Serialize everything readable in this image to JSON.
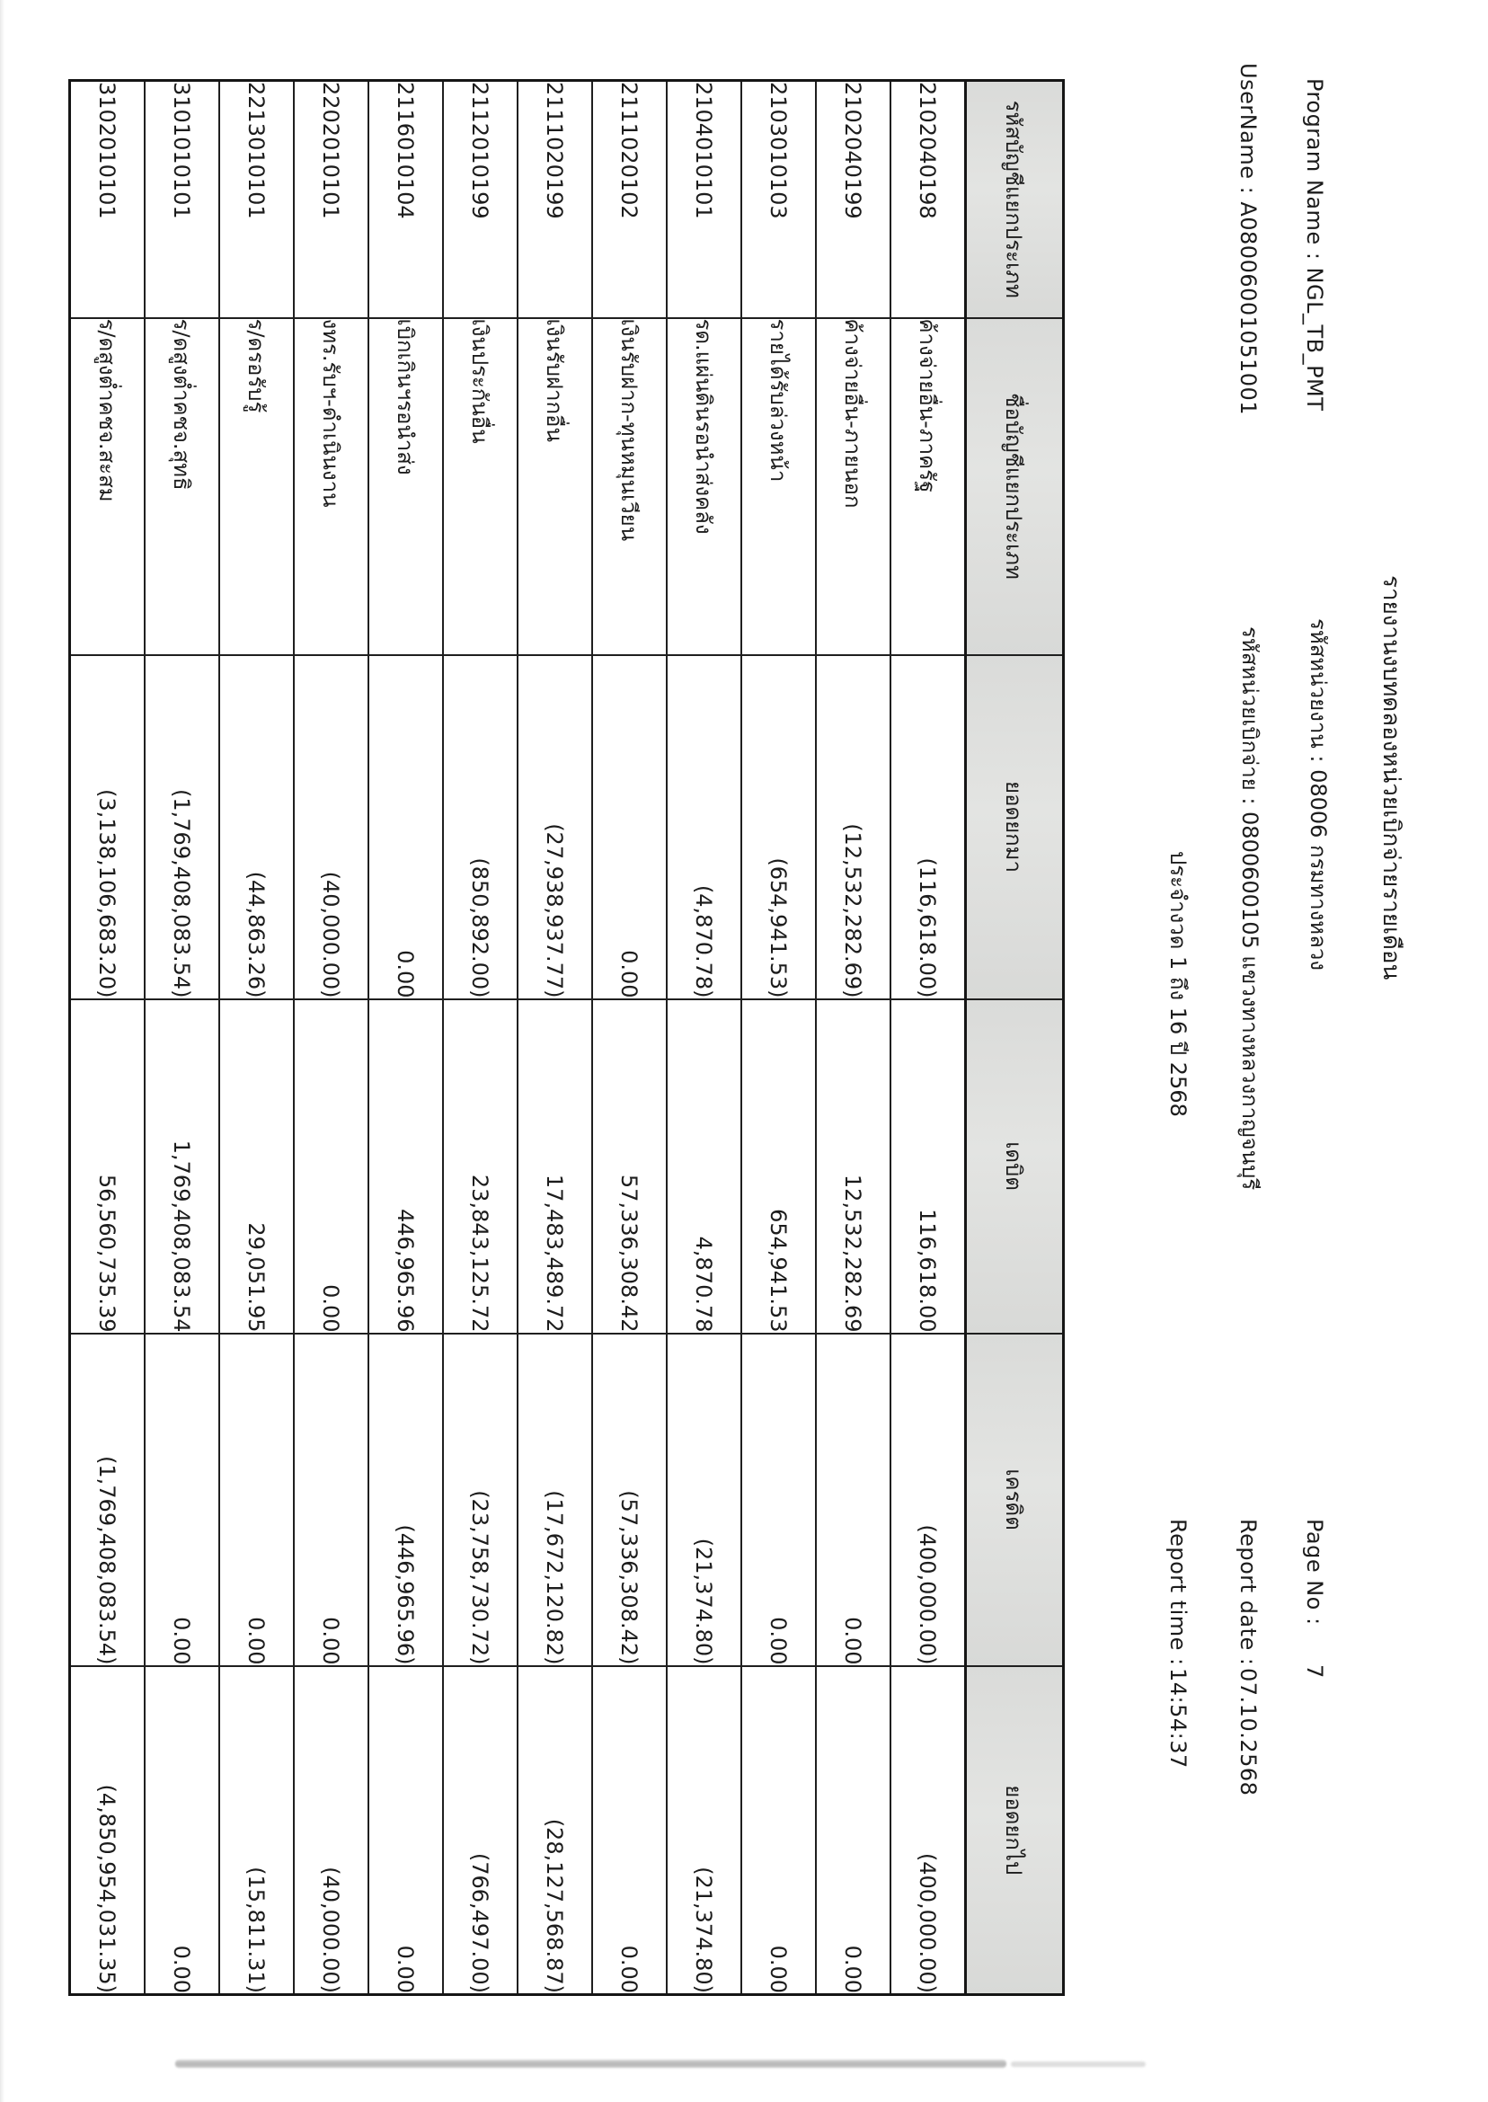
{
  "header": {
    "title": "รายงานงบทดลองหน่วยเบิกจ่ายรายเดือน",
    "program_name_line": "Program Name : NGL_TB_PMT",
    "username_line": "UserName : A08006001051001",
    "agency_line": "รหัสหน่วยงาน : 08006 กรมทางหลวง",
    "unit_line": "รหัสหน่วยเบิกจ่าย : 0800600105 แขวงทางหลวงกาญจนบุรี",
    "period_line": "ประจำงวด 1 ถึง 16 ปี 2568",
    "page_no_label": "Page No :",
    "page_no": "7",
    "report_date_label": "Report date :",
    "report_date": "07.10.2568",
    "report_time_label": "Report time :",
    "report_time": "14:54:37"
  },
  "table": {
    "columns": [
      "รหัสบัญชีแยกประเภท",
      "ชื่อบัญชีแยกประเภท",
      "ยอดยกมา",
      "เดบิต",
      "เครดิต",
      "ยอดยกไป"
    ],
    "rows": [
      {
        "code": "2102040198",
        "name": "ค้างจ่ายอื่น-ภาครัฐ",
        "opening": "(116,618.00)",
        "debit": "116,618.00",
        "credit": "(400,000.00)",
        "closing": "(400,000.00)"
      },
      {
        "code": "2102040199",
        "name": "ค้างจ่ายอื่น-ภายนอก",
        "opening": "(12,532,282.69)",
        "debit": "12,532,282.69",
        "credit": "0.00",
        "closing": "0.00"
      },
      {
        "code": "2103010103",
        "name": "รายได้รับล่วงหน้า",
        "opening": "(654,941.53)",
        "debit": "654,941.53",
        "credit": "0.00",
        "closing": "0.00"
      },
      {
        "code": "2104010101",
        "name": "รด.แผ่นดินรอนำส่งคลัง",
        "opening": "(4,870.78)",
        "debit": "4,870.78",
        "credit": "(21,374.80)",
        "closing": "(21,374.80)"
      },
      {
        "code": "2111020102",
        "name": "เงินรับฝาก-ทุนหมุนเวียน",
        "opening": "0.00",
        "debit": "57,336,308.42",
        "credit": "(57,336,308.42)",
        "closing": "0.00"
      },
      {
        "code": "2111020199",
        "name": "เงินรับฝากอื่น",
        "opening": "(27,938,937.77)",
        "debit": "17,483,489.72",
        "credit": "(17,672,120.82)",
        "closing": "(28,127,568.87)"
      },
      {
        "code": "2112010199",
        "name": "เงินประกันอื่น",
        "opening": "(850,892.00)",
        "debit": "23,843,125.72",
        "credit": "(23,758,730.72)",
        "closing": "(766,497.00)"
      },
      {
        "code": "2116010104",
        "name": "เบิกเกินฯรอนำส่ง",
        "opening": "0.00",
        "debit": "446,965.96",
        "credit": "(446,965.96)",
        "closing": "0.00"
      },
      {
        "code": "2202010101",
        "name": "งทร.รับฯ-ดำเนินงาน",
        "opening": "(40,000.00)",
        "debit": "0.00",
        "credit": "0.00",
        "closing": "(40,000.00)"
      },
      {
        "code": "2213010101",
        "name": "ร/ดรอรับรู้",
        "opening": "(44,863.26)",
        "debit": "29,051.95",
        "credit": "0.00",
        "closing": "(15,811.31)"
      },
      {
        "code": "3101010101",
        "name": "ร/ดสูงต่ำคชจ.สุทธิ",
        "opening": "(1,769,408,083.54)",
        "debit": "1,769,408,083.54",
        "credit": "0.00",
        "closing": "0.00"
      },
      {
        "code": "3102010101",
        "name": "ร/ดสูงต่ำคชจ.สะสม",
        "opening": "(3,138,106,683.20)",
        "debit": "56,560,735.39",
        "credit": "(1,769,408,083.54)",
        "closing": "(4,850,954,031.35)"
      }
    ]
  }
}
